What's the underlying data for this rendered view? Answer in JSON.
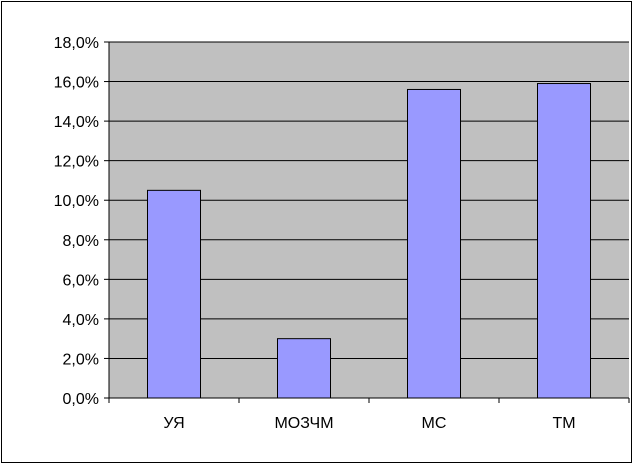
{
  "chart_data": {
    "type": "bar",
    "categories": [
      "УЯ",
      "МОЗЧМ",
      "МС",
      "ТМ"
    ],
    "values": [
      10.5,
      3.0,
      15.6,
      15.9
    ],
    "value_format": "percent_1_decimal_comma",
    "ylim": [
      0,
      18
    ],
    "ytick_step": 2,
    "yticks": [
      "0,0%",
      "2,0%",
      "4,0%",
      "6,0%",
      "8,0%",
      "10,0%",
      "12,0%",
      "14,0%",
      "16,0%",
      "18,0%"
    ],
    "grid": true,
    "legend": "none",
    "colors": {
      "bar_fill": "#9999ff",
      "bar_stroke": "#000000",
      "plot_background": "#c0c0c0",
      "gridline": "#000000"
    }
  }
}
